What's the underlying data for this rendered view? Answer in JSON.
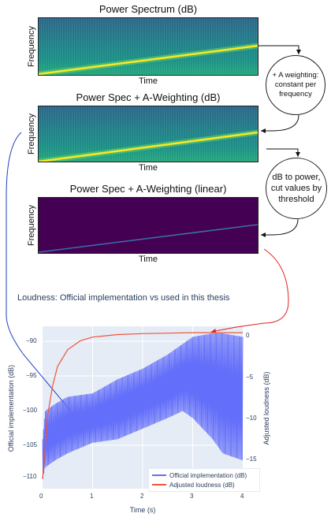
{
  "panels": [
    {
      "title": "Power Spectrum (dB)",
      "xlabel": "Time",
      "ylabel": "Frequency"
    },
    {
      "title": "Power Spec + A-Weighting (dB)",
      "xlabel": "Time",
      "ylabel": "Frequency"
    },
    {
      "title": "Power Spec + A-Weighting (linear)",
      "xlabel": "Time",
      "ylabel": "Frequency"
    }
  ],
  "steps": [
    {
      "line1": "+ A weighting:",
      "line2": "constant per",
      "line3": "frequency"
    },
    {
      "line1": "dB to power,",
      "line2": "cut values by",
      "line3": "threshold"
    }
  ],
  "plot": {
    "title": "Loudness: Official implementation vs used in this thesis",
    "xlabel": "Time (s)",
    "ylabel_left": "Official implementation (dB)",
    "ylabel_right": "Adjusted loudness (dB)",
    "x_ticks": [
      "0",
      "1",
      "2",
      "3",
      "4"
    ],
    "y_left_ticks": [
      "−90",
      "−95",
      "−100",
      "−105",
      "−110"
    ],
    "y_right_ticks": [
      "0",
      "−5",
      "−10",
      "−15"
    ],
    "legend": [
      "Official implementation (dB)",
      "Adjusted loudness (dB)"
    ],
    "colors": {
      "official": "#636efa",
      "adjusted": "#ef553b",
      "arrow_blue": "#1f3fbf",
      "arrow_red": "#e02020"
    }
  },
  "chart_data": {
    "type": "line",
    "title": "Loudness: Official implementation vs used in this thesis",
    "xlabel": "Time (s)",
    "ylabel": "Official implementation (dB)",
    "y2label": "Adjusted loudness (dB)",
    "xlim": [
      0,
      4
    ],
    "ylim": [
      -111,
      -88
    ],
    "y2lim": [
      -16,
      0.6
    ],
    "series": [
      {
        "name": "Official implementation (dB)",
        "axis": "left",
        "envelope_x": [
          0,
          0.05,
          0.25,
          0.5,
          1.0,
          1.5,
          2.0,
          2.5,
          2.8,
          3.0,
          3.4,
          3.6,
          4.0
        ],
        "upper": [
          -104,
          -100,
          -99,
          -98,
          -97.5,
          -95.5,
          -94,
          -92,
          -90.5,
          -89.5,
          -89,
          -89,
          -89.5
        ],
        "lower": [
          -110,
          -108,
          -107,
          -106,
          -104.5,
          -104,
          -102.5,
          -101,
          -100,
          -101,
          -104,
          -106,
          -107
        ]
      },
      {
        "name": "Adjusted loudness (dB)",
        "axis": "right",
        "x": [
          0,
          0.05,
          0.1,
          0.2,
          0.3,
          0.5,
          0.75,
          1.0,
          1.5,
          2.0,
          2.5,
          3.0,
          3.5,
          4.0
        ],
        "y": [
          -15,
          -12,
          -8.5,
          -5.5,
          -3.5,
          -1.8,
          -0.9,
          -0.5,
          -0.25,
          -0.15,
          -0.1,
          -0.05,
          -0.05,
          -0.05
        ]
      }
    ]
  }
}
